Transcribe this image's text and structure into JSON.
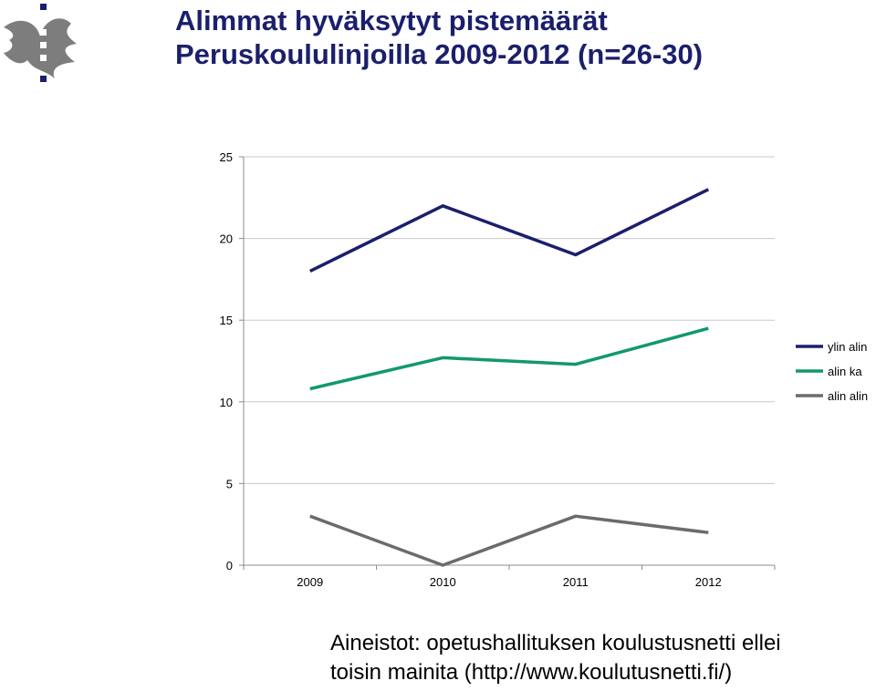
{
  "title": {
    "line1": "Alimmat hyväksytyt pistemäärät",
    "line2": "Peruskoululinjoilla 2009-2012 (n=26-30)"
  },
  "logo": {
    "icon": "helsinki-university-flame-logo"
  },
  "chart_data": {
    "type": "line",
    "x": [
      "2009",
      "2010",
      "2011",
      "2012"
    ],
    "ylim": [
      0,
      25
    ],
    "yticks": [
      "0",
      "5",
      "10",
      "15",
      "20",
      "25"
    ],
    "grid": true,
    "legend_position": "right",
    "series": [
      {
        "name": "ylin alin",
        "values": [
          18,
          22,
          19,
          23
        ],
        "color": "#1b1f6b"
      },
      {
        "name": "alin ka",
        "values": [
          10.8,
          12.7,
          12.3,
          14.5
        ],
        "color": "#12996a"
      },
      {
        "name": "alin alin",
        "values": [
          3,
          0,
          3,
          2
        ],
        "color": "#6b6b6b"
      }
    ]
  },
  "footer": {
    "line1": "Aineistot: opetushallituksen koulustusnetti ellei",
    "line2": "toisin mainita (http://www.koulutusnetti.fi/)"
  }
}
